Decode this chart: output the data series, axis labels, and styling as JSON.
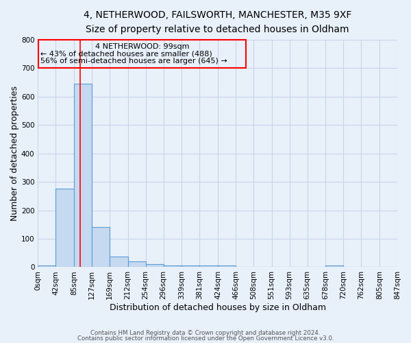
{
  "title_line1": "4, NETHERWOOD, FAILSWORTH, MANCHESTER, M35 9XF",
  "title_line2": "Size of property relative to detached houses in Oldham",
  "xlabel": "Distribution of detached houses by size in Oldham",
  "ylabel": "Number of detached properties",
  "footer_line1": "Contains HM Land Registry data © Crown copyright and database right 2024.",
  "footer_line2": "Contains public sector information licensed under the Open Government Licence v3.0.",
  "bin_edges": [
    0,
    42,
    85,
    127,
    169,
    212,
    254,
    296,
    339,
    381,
    424,
    466,
    508,
    551,
    593,
    635,
    678,
    720,
    762,
    805,
    847
  ],
  "bin_labels": [
    "0sqm",
    "42sqm",
    "85sqm",
    "127sqm",
    "169sqm",
    "212sqm",
    "254sqm",
    "296sqm",
    "339sqm",
    "381sqm",
    "424sqm",
    "466sqm",
    "508sqm",
    "551sqm",
    "593sqm",
    "635sqm",
    "678sqm",
    "720sqm",
    "762sqm",
    "805sqm",
    "847sqm"
  ],
  "bar_heights": [
    5,
    275,
    645,
    140,
    38,
    20,
    10,
    5,
    5,
    5,
    5,
    0,
    0,
    0,
    0,
    0,
    5,
    0,
    0,
    0
  ],
  "bar_color": "#c5d9f0",
  "bar_edge_color": "#5b9bd5",
  "ylim": [
    0,
    800
  ],
  "yticks": [
    0,
    100,
    200,
    300,
    400,
    500,
    600,
    700,
    800
  ],
  "property_size": 99,
  "annotation_text_line1": "4 NETHERWOOD: 99sqm",
  "annotation_text_line2": "← 43% of detached houses are smaller (488)",
  "annotation_text_line3": "56% of semi-detached houses are larger (645) →",
  "background_color": "#e8f0fa",
  "grid_color": "#c8d4e8",
  "title_fontsize": 10,
  "subtitle_fontsize": 9.5,
  "axis_label_fontsize": 9,
  "tick_fontsize": 7.5
}
